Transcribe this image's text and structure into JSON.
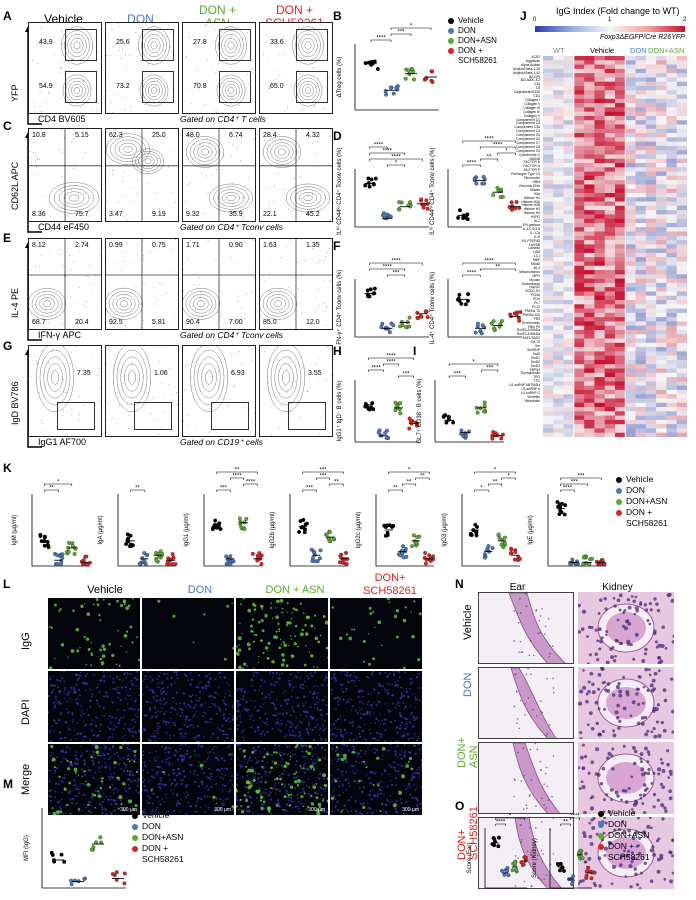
{
  "colors": {
    "vehicle": "#000000",
    "don": "#4a78c0",
    "don_asn": "#5aab2a",
    "don_sch": "#e32020"
  },
  "groups": {
    "vehicle": "Vehicle",
    "don": "DON",
    "don_asn_1": "DON +",
    "don_asn_2": "ASN",
    "don_sch_1": "DON +",
    "don_sch_2": "SCH58261"
  },
  "legend": {
    "vehicle": "Vehicle",
    "don": "DON",
    "don_asn": "DON+ASN",
    "don_sch_1": "DON +",
    "don_sch_2": "SCH58261"
  },
  "panels": {
    "A": {
      "label": "A",
      "ylabel": "YFP",
      "xlabel": "CD4 BV605",
      "gated": "Gated on CD4⁺ T cells",
      "values": [
        [
          "43.9",
          "54.9"
        ],
        [
          "25.6",
          "73.2"
        ],
        [
          "27.8",
          "70.8"
        ],
        [
          "33.6",
          "65.0"
        ]
      ]
    },
    "B": {
      "label": "B",
      "ylabel": "ΔTreg cells (%)"
    },
    "C": {
      "label": "C",
      "ylabel": "CD62L APC",
      "xlabel": "CD44 eF450",
      "gated": "Gated on CD4⁺ Tconv cells",
      "values": [
        [
          "10.8",
          "5.15",
          "8.36",
          "75.7"
        ],
        [
          "62.3",
          "25.0",
          "3.47",
          "9.19"
        ],
        [
          "48.0",
          "6.74",
          "9.32",
          "35.9"
        ],
        [
          "28.4",
          "4.32",
          "22.1",
          "45.2"
        ]
      ]
    },
    "D": {
      "label": "D",
      "ylabel1": "CD62Lʰⁱ CD44ˡᵒ CD4⁺ Tconv cells (%)",
      "ylabel2": "CD62Lˡᵒ CD44ʰⁱ CD4⁺ Tconv cells (%)"
    },
    "E": {
      "label": "E",
      "ylabel": "IL-4 PE",
      "xlabel": "IFN-γ APC",
      "gated": "Gated on CD4⁺ Tconv cells",
      "values": [
        [
          "8.12",
          "2.74",
          "68.7",
          "20.4"
        ],
        [
          "0.99",
          "0.75",
          "92.5",
          "5.81"
        ],
        [
          "1.71",
          "0.90",
          "90.4",
          "7.00"
        ],
        [
          "1.63",
          "1.35",
          "85.0",
          "12.0"
        ]
      ]
    },
    "F": {
      "label": "F",
      "ylabel1": "IFN-γ⁺ CD4⁺ Tconv cells (%)",
      "ylabel2": "IL-4⁺ CD4⁺ Tconv cells (%)"
    },
    "G": {
      "label": "G",
      "ylabel": "IgD BV786",
      "xlabel": "IgG1 AF700",
      "gated": "Gated on CD19⁺ cells",
      "values": [
        "7.35",
        "1.06",
        "6.93",
        "3.55"
      ]
    },
    "H": {
      "label": "H",
      "ylabel": "IgG1⁺ IgD⁻ B cells (%)"
    },
    "I": {
      "label": "I",
      "ylabel": "GL7⁺ CD38⁻ B cells (%)"
    },
    "J": {
      "label": "J",
      "title": "IgG Index (Fold change to WT)",
      "ticks": [
        "0",
        "1",
        "2"
      ],
      "genotype": "Foxp3ΔEGFP/Cre R26YFP",
      "cols": [
        "WT",
        "Vehicle",
        "DON",
        "DON+ASN"
      ]
    },
    "K": {
      "label": "K",
      "ylabels": [
        "IgM (µg/ml)",
        "IgA (µg/ml)",
        "IgG1 (µg/ml)",
        "IgG2b (µg/ml)",
        "IgG2c (µg/ml)",
        "IgG3 (µg/ml)",
        "IgE (µg/ml)"
      ]
    },
    "L": {
      "label": "L",
      "cols": [
        "Vehicle",
        "DON",
        "DON + ASN",
        "DON+",
        "SCH58261"
      ],
      "rows": [
        "IgG",
        "DAPI",
        "Merge"
      ],
      "scale": "300 µm"
    },
    "M": {
      "label": "M",
      "ylabel": "MFI (IgG)"
    },
    "N": {
      "label": "N",
      "cols": [
        "Ear",
        "Kidney"
      ],
      "rows": [
        "Vehicle",
        "DON",
        "DON+",
        "ASN",
        "DON+",
        "SCH58261"
      ]
    },
    "O": {
      "label": "O",
      "ylabels": [
        "Score (Ear)",
        "Score (Kidney)"
      ]
    }
  },
  "sig": {
    "s1": "*",
    "s2": "**",
    "s3": "***",
    "s4": "****"
  },
  "heatmap_genes": [
    "ACE2",
    "Aggrecan",
    "Alpha Actinin",
    "Amyloid Beta-1-40",
    "Amyloid Beta-1-42",
    "B2-GPI",
    "BCOADC-E2",
    "C1q",
    "C3",
    "Calprotectin/S100",
    "CD4",
    "Collagen I",
    "Collagen II",
    "Collagen III",
    "Collagen IV",
    "Collagen V",
    "Complement C1",
    "Complement C3",
    "Complement C3a",
    "Complement C4",
    "Complement C5",
    "Complement C6",
    "Complement C7",
    "Complement C8",
    "Complement C9",
    "Cytochrome C",
    "dsDNA",
    "FACTOR B",
    "FACTOR H",
    "FACTOR P",
    "Fibrinogen Type I-S",
    "Fibronectin",
    "GBM",
    "Genomic DNA",
    "Gliadin",
    "H2a",
    "Histone H1",
    "Histone H2A",
    "Histone H2B",
    "Histone H3",
    "Histone H4",
    "HSPG",
    "IA-2",
    "IFN-gamma",
    "IL-1/CXCL8",
    "IL-17A",
    "IL-6",
    "KU-P70/P80",
    "La/SSB",
    "Laminin",
    "LAM",
    "LC1",
    "MBP",
    "MDA5",
    "Mi-2",
    "Mitochondrion",
    "MPO",
    "Myosin",
    "Nucleosome",
    "Nup 62",
    "OGDC-E2",
    "PCNA",
    "PDH",
    "PL7",
    "PL12",
    "PM/Scl-75",
    "PM/Scl-100",
    "PR3",
    "Prothrombin",
    "Ribo P0",
    "Ro/SS-A 52kDa",
    "Ro/SS-A 60kDa",
    "SAE1/SAE2",
    "Scl-70",
    "Sm",
    "Sm/RNP",
    "SmD",
    "SmD1",
    "SmD2",
    "SmD3",
    "SRP54",
    "Thyroglobulin",
    "TPO",
    "TTG",
    "U1-snRNP 68/70kDa",
    "U1-snRNP A",
    "U1-snRNP C",
    "Vimentin",
    "Vitronectin"
  ]
}
